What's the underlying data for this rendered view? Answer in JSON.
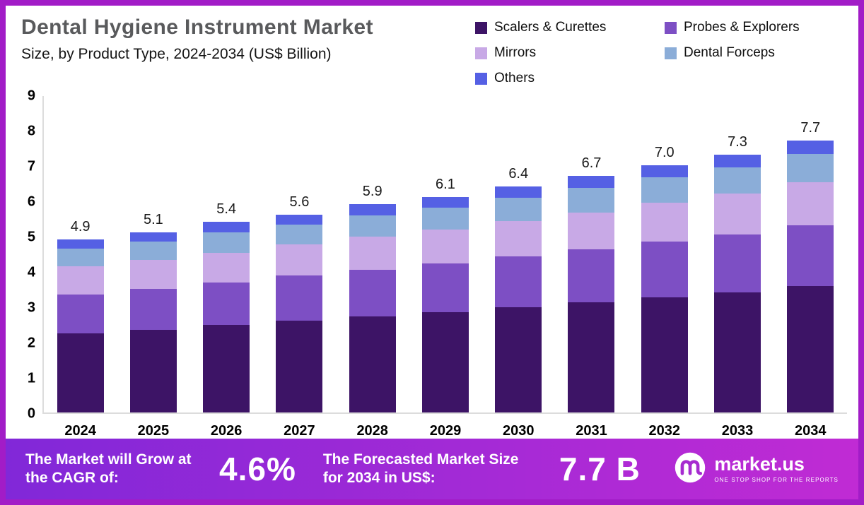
{
  "header": {
    "title": "Dental Hygiene Instrument Market",
    "subtitle": "Size, by Product Type, 2024-2034 (US$ Billion)"
  },
  "chart_data": {
    "type": "bar",
    "stacked": true,
    "title": "Dental Hygiene Instrument Market Size, by Product Type, 2024-2034 (US$ Billion)",
    "categories": [
      "2024",
      "2025",
      "2026",
      "2027",
      "2028",
      "2029",
      "2030",
      "2031",
      "2032",
      "2033",
      "2034"
    ],
    "series": [
      {
        "name": "Scalers & Curettes",
        "color": "#3d1466",
        "values": [
          2.25,
          2.35,
          2.48,
          2.6,
          2.72,
          2.85,
          2.98,
          3.12,
          3.26,
          3.4,
          3.58
        ]
      },
      {
        "name": "Probes & Explorers",
        "color": "#7d4fc4",
        "values": [
          1.1,
          1.15,
          1.2,
          1.28,
          1.32,
          1.38,
          1.44,
          1.5,
          1.58,
          1.65,
          1.72
        ]
      },
      {
        "name": "Mirrors",
        "color": "#c8a9e6",
        "values": [
          0.8,
          0.82,
          0.85,
          0.88,
          0.95,
          0.95,
          1.0,
          1.05,
          1.1,
          1.15,
          1.22
        ]
      },
      {
        "name": "Dental Forceps",
        "color": "#8badd8",
        "values": [
          0.5,
          0.52,
          0.57,
          0.56,
          0.6,
          0.62,
          0.66,
          0.69,
          0.72,
          0.75,
          0.8
        ]
      },
      {
        "name": "Others",
        "color": "#5560e4",
        "values": [
          0.25,
          0.26,
          0.3,
          0.28,
          0.31,
          0.3,
          0.32,
          0.34,
          0.34,
          0.35,
          0.38
        ]
      }
    ],
    "totals": [
      4.9,
      5.1,
      5.4,
      5.6,
      5.9,
      6.1,
      6.4,
      6.7,
      7.0,
      7.3,
      7.7
    ],
    "total_labels": [
      "4.9",
      "5.1",
      "5.4",
      "5.6",
      "5.9",
      "6.1",
      "6.4",
      "6.7",
      "7.0",
      "7.3",
      "7.7"
    ],
    "ylim": [
      0,
      9
    ],
    "ytick_step": 1,
    "grid": false,
    "legend_position": "top-right"
  },
  "footer": {
    "cagr_label": "The Market will Grow at the CAGR of:",
    "cagr_value": "4.6%",
    "forecast_label": "The Forecasted Market Size for 2034 in US$:",
    "forecast_value": "7.7 B",
    "brand": "market.us",
    "brand_tagline": "ONE STOP SHOP FOR THE REPORTS"
  }
}
